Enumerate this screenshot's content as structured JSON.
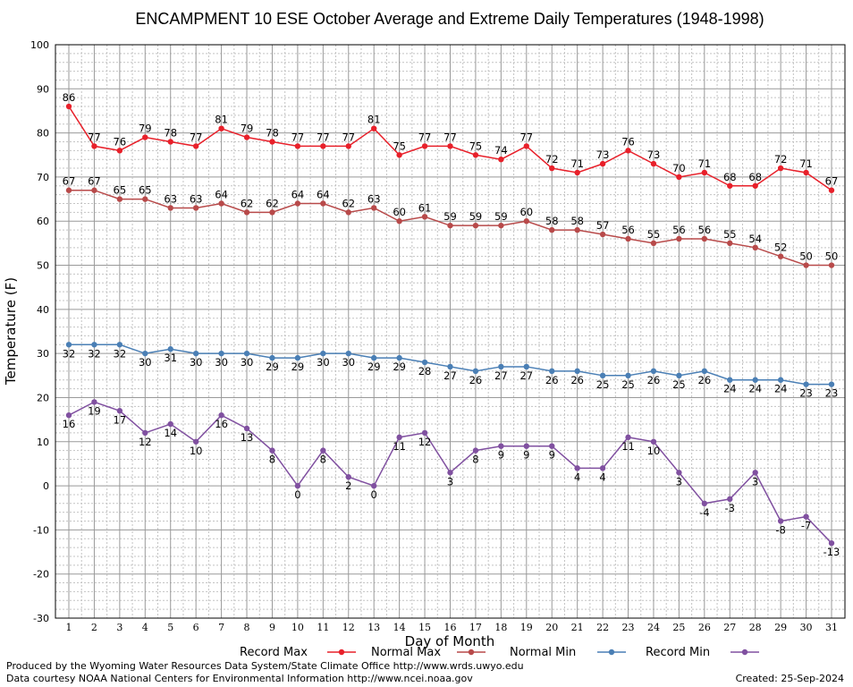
{
  "chart_data": {
    "type": "line",
    "title": "ENCAMPMENT 10 ESE October Average and Extreme Daily Temperatures (1948-1998)",
    "xlabel": "Day of Month",
    "ylabel": "Temperature (F)",
    "ylim": [
      -30,
      100
    ],
    "y_ticks": [
      -30,
      -20,
      -10,
      0,
      10,
      20,
      30,
      40,
      50,
      60,
      70,
      80,
      90,
      100
    ],
    "x": [
      1,
      2,
      3,
      4,
      5,
      6,
      7,
      8,
      9,
      10,
      11,
      12,
      13,
      14,
      15,
      16,
      17,
      18,
      19,
      20,
      21,
      22,
      23,
      24,
      25,
      26,
      27,
      28,
      29,
      30,
      31
    ],
    "grid": true,
    "legend_position": "bottom",
    "series": [
      {
        "name": "Record Max",
        "color": "#e8202a",
        "label_pos": "above",
        "values": [
          86,
          77,
          76,
          79,
          78,
          77,
          81,
          79,
          78,
          77,
          77,
          77,
          81,
          75,
          77,
          77,
          75,
          74,
          77,
          72,
          71,
          73,
          76,
          73,
          70,
          71,
          68,
          68,
          72,
          71,
          67
        ]
      },
      {
        "name": "Normal Max",
        "color": "#b84a4a",
        "label_pos": "above",
        "values": [
          67,
          67,
          65,
          65,
          63,
          63,
          64,
          62,
          62,
          64,
          64,
          62,
          63,
          60,
          61,
          59,
          59,
          59,
          60,
          58,
          58,
          57,
          56,
          55,
          56,
          56,
          55,
          54,
          52,
          50,
          50
        ]
      },
      {
        "name": "Normal Min",
        "color": "#4a7fb5",
        "label_pos": "below",
        "values": [
          32,
          32,
          32,
          30,
          31,
          30,
          30,
          30,
          29,
          29,
          30,
          30,
          29,
          29,
          28,
          27,
          26,
          27,
          27,
          26,
          26,
          25,
          25,
          26,
          25,
          26,
          24,
          24,
          24,
          23,
          23
        ]
      },
      {
        "name": "Record Min",
        "color": "#8050a0",
        "label_pos": "below",
        "values": [
          16,
          19,
          17,
          12,
          14,
          10,
          16,
          13,
          8,
          0,
          8,
          2,
          0,
          11,
          12,
          3,
          8,
          9,
          9,
          9,
          4,
          4,
          11,
          10,
          3,
          -4,
          -3,
          3,
          -8,
          -7,
          -13
        ]
      }
    ]
  },
  "footer": {
    "produced_by": "Produced by the Wyoming Water Resources Data System/State Climate Office http://www.wrds.uwyo.edu",
    "data_courtesy": "Data courtesy NOAA National Centers for Environmental Information http://www.ncei.noaa.gov",
    "created": "Created:  25-Sep-2024"
  }
}
